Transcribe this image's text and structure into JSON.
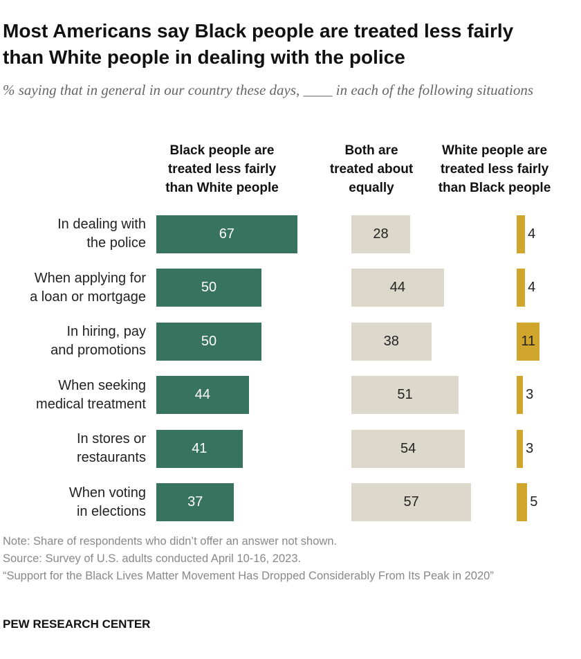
{
  "chart_data": {
    "type": "bar",
    "title": "Most Americans say Black people are treated less fairly than White people in dealing with the police",
    "subtitle": "% saying that in general in our country these days, ____ in each of the following situations",
    "categories": [
      "In dealing with\nthe police",
      "When applying for\na loan or mortgage",
      "In hiring, pay\nand promotions",
      "When seeking\nmedical treatment",
      "In stores or\nrestaurants",
      "When voting\nin elections"
    ],
    "series": [
      {
        "name": "Black people are\ntreated less fairly\nthan White people",
        "color": "#37735f",
        "label_color": "#ffffff",
        "values": [
          67,
          50,
          50,
          44,
          41,
          37
        ]
      },
      {
        "name": "Both are\ntreated about\nequally",
        "color": "#dcd8cb",
        "label_color": "#222222",
        "values": [
          28,
          44,
          38,
          51,
          54,
          57
        ]
      },
      {
        "name": "White people are\ntreated less fairly\nthan Black people",
        "color": "#d1a62c",
        "label_color": "#222222",
        "values": [
          4,
          4,
          11,
          3,
          3,
          5
        ]
      }
    ],
    "note": "Note: Share of respondents who didn’t offer an answer not shown.",
    "source": "Source: Survey of U.S. adults conducted April 10-16, 2023.",
    "report": "“Support for the Black Lives Matter Movement Has Dropped Considerably From Its Peak in 2020”",
    "organization": "PEW RESEARCH CENTER"
  }
}
